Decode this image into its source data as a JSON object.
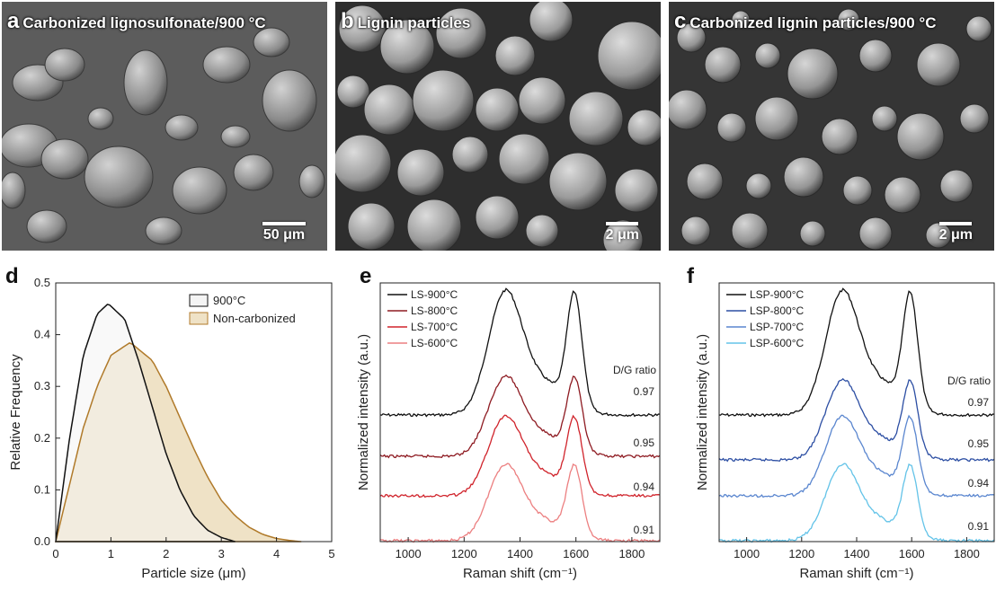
{
  "sem_panels": [
    {
      "letter": "a",
      "title": "Carbonized lignosulfonate/900 °C",
      "scale": "50 μm",
      "image": "irregular-aggregate-particles"
    },
    {
      "letter": "b",
      "title": "Lignin particles",
      "scale": "2 μm",
      "image": "spherical-particles"
    },
    {
      "letter": "c",
      "title": "Carbonized lignin particles/900 °C",
      "scale": "2 μm",
      "image": "spherical-particles"
    }
  ],
  "colors": {
    "carbonized": "#111111",
    "non_carbonized_line": "#b07a2a",
    "non_carbonized_fill": "#efe2c6"
  },
  "chart_data": [
    {
      "letter": "d",
      "type": "area",
      "xlabel": "Particle size (μm)",
      "ylabel": "Relative Frequency",
      "xlim": [
        0,
        5
      ],
      "ylim": [
        0,
        0.5
      ],
      "xticks": [
        "0",
        "1",
        "2",
        "3",
        "4",
        "5"
      ],
      "yticks": [
        "0.0",
        "0.1",
        "0.2",
        "0.3",
        "0.4",
        "0.5"
      ],
      "legend": [
        "900°C",
        "Non-carbonized"
      ],
      "series": [
        {
          "name": "900°C",
          "x": [
            0,
            0.25,
            0.5,
            0.75,
            0.95,
            1.25,
            1.5,
            1.75,
            2.0,
            2.25,
            2.5,
            2.75,
            3.0,
            3.25
          ],
          "y": [
            0,
            0.2,
            0.36,
            0.44,
            0.46,
            0.43,
            0.35,
            0.26,
            0.17,
            0.1,
            0.05,
            0.022,
            0.008,
            0
          ]
        },
        {
          "name": "Non-carbonized",
          "x": [
            0,
            0.25,
            0.5,
            0.75,
            1.0,
            1.35,
            1.75,
            2.0,
            2.25,
            2.5,
            2.75,
            3.0,
            3.25,
            3.5,
            3.75,
            4.0,
            4.25,
            4.45
          ],
          "y": [
            0,
            0.11,
            0.22,
            0.3,
            0.36,
            0.385,
            0.35,
            0.3,
            0.24,
            0.18,
            0.125,
            0.08,
            0.05,
            0.028,
            0.014,
            0.006,
            0.002,
            0
          ]
        }
      ]
    },
    {
      "letter": "e",
      "type": "line",
      "xlabel": "Raman shift (cm⁻¹)",
      "ylabel": "Normalized intensity (a.u.)",
      "xlim": [
        900,
        1900
      ],
      "xticks": [
        "1000",
        "1200",
        "1400",
        "1600",
        "1800"
      ],
      "ratio_title": "D/G ratio",
      "series": [
        {
          "name": "LS-900°C",
          "color": "#111111",
          "ratio": "0.97"
        },
        {
          "name": "LS-800°C",
          "color": "#8e1b22",
          "ratio": "0.95"
        },
        {
          "name": "LS-700°C",
          "color": "#d0232b",
          "ratio": "0.94"
        },
        {
          "name": "LS-600°C",
          "color": "#ec7f80",
          "ratio": "0.91"
        }
      ]
    },
    {
      "letter": "f",
      "type": "line",
      "xlabel": "Raman shift (cm⁻¹)",
      "ylabel": "Normalized intensity (a.u.)",
      "xlim": [
        900,
        1900
      ],
      "xticks": [
        "1000",
        "1200",
        "1400",
        "1600",
        "1800"
      ],
      "ratio_title": "D/G ratio",
      "series": [
        {
          "name": "LSP-900°C",
          "color": "#111111",
          "ratio": "0.97"
        },
        {
          "name": "LSP-800°C",
          "color": "#2c4ea3",
          "ratio": "0.95"
        },
        {
          "name": "LSP-700°C",
          "color": "#5a86cf",
          "ratio": "0.94"
        },
        {
          "name": "LSP-600°C",
          "color": "#63c3e8",
          "ratio": "0.91"
        }
      ]
    }
  ]
}
